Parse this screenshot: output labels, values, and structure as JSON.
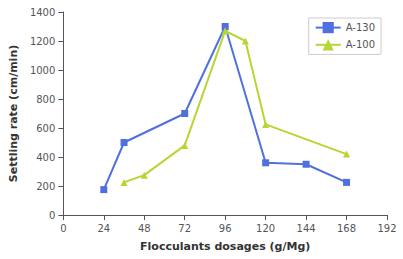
{
  "chart_data": {
    "type": "line",
    "xlabel": "Flocculants dosages (g/Mg)",
    "ylabel": "Settling rate (cm/min)",
    "series": [
      {
        "name": "A-130",
        "x": [
          24,
          36,
          72,
          96,
          120,
          144,
          168
        ],
        "values": [
          175,
          500,
          700,
          1300,
          360,
          350,
          225
        ],
        "marker": "square"
      },
      {
        "name": "A-100",
        "x": [
          36,
          48,
          72,
          96,
          108,
          120,
          168
        ],
        "values": [
          225,
          275,
          480,
          1270,
          1200,
          625,
          420
        ],
        "marker": "triangle"
      }
    ],
    "xlim": [
      0,
      192
    ],
    "xticks": [
      0,
      24,
      48,
      72,
      96,
      120,
      144,
      168,
      192
    ],
    "ylim": [
      0,
      1400
    ],
    "yticks": [
      0,
      200,
      400,
      600,
      800,
      1000,
      1200,
      1400
    ],
    "legend": "upper right",
    "grid": false
  }
}
